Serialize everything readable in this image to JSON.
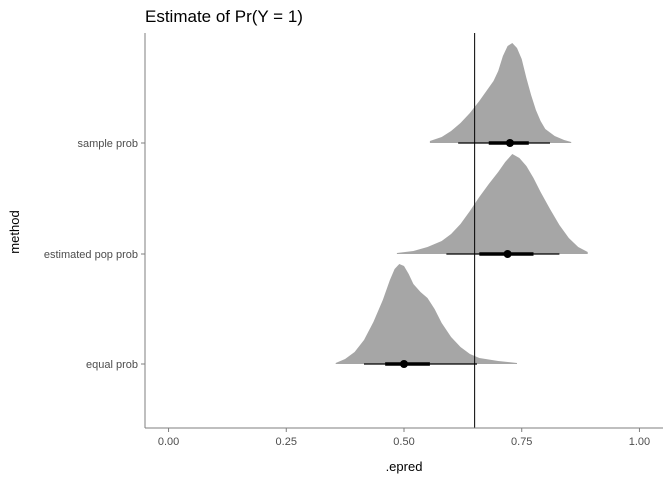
{
  "chart_data": {
    "type": "halfeye",
    "title": "Estimate of Pr(Y = 1)",
    "xlabel": ".epred",
    "ylabel": "method",
    "xlim": [
      -0.05,
      1.05
    ],
    "x_ticks": [
      0.0,
      0.25,
      0.5,
      0.75,
      1.0
    ],
    "x_tick_labels": [
      "0.00",
      "0.25",
      "0.50",
      "0.75",
      "1.00"
    ],
    "reference_line": 0.65,
    "grid": false,
    "density_color": "#a6a6a6",
    "interval_color": "#000000",
    "categories": [
      "sample prob",
      "estimated pop prob",
      "equal prob"
    ],
    "series": [
      {
        "category": "sample prob",
        "point": 0.725,
        "interval_66": [
          0.68,
          0.765
        ],
        "interval_95": [
          0.615,
          0.81
        ],
        "range": [
          0.555,
          0.855
        ],
        "density": [
          [
            0.555,
            0.02
          ],
          [
            0.58,
            0.06
          ],
          [
            0.6,
            0.12
          ],
          [
            0.62,
            0.2
          ],
          [
            0.64,
            0.3
          ],
          [
            0.66,
            0.42
          ],
          [
            0.675,
            0.52
          ],
          [
            0.69,
            0.62
          ],
          [
            0.7,
            0.72
          ],
          [
            0.71,
            0.87
          ],
          [
            0.72,
            0.97
          ],
          [
            0.73,
            1.0
          ],
          [
            0.74,
            0.95
          ],
          [
            0.75,
            0.84
          ],
          [
            0.76,
            0.65
          ],
          [
            0.77,
            0.48
          ],
          [
            0.78,
            0.33
          ],
          [
            0.79,
            0.22
          ],
          [
            0.8,
            0.14
          ],
          [
            0.82,
            0.07
          ],
          [
            0.84,
            0.03
          ],
          [
            0.855,
            0.01
          ]
        ]
      },
      {
        "category": "estimated pop prob",
        "point": 0.72,
        "interval_66": [
          0.66,
          0.775
        ],
        "interval_95": [
          0.59,
          0.83
        ],
        "range": [
          0.485,
          0.89
        ],
        "density": [
          [
            0.485,
            0.01
          ],
          [
            0.52,
            0.03
          ],
          [
            0.55,
            0.07
          ],
          [
            0.58,
            0.13
          ],
          [
            0.6,
            0.2
          ],
          [
            0.62,
            0.3
          ],
          [
            0.64,
            0.43
          ],
          [
            0.66,
            0.57
          ],
          [
            0.68,
            0.7
          ],
          [
            0.7,
            0.82
          ],
          [
            0.715,
            0.92
          ],
          [
            0.73,
            1.0
          ],
          [
            0.745,
            0.96
          ],
          [
            0.76,
            0.88
          ],
          [
            0.775,
            0.76
          ],
          [
            0.79,
            0.62
          ],
          [
            0.81,
            0.45
          ],
          [
            0.83,
            0.29
          ],
          [
            0.85,
            0.16
          ],
          [
            0.87,
            0.07
          ],
          [
            0.89,
            0.02
          ]
        ]
      },
      {
        "category": "equal prob",
        "point": 0.5,
        "interval_66": [
          0.46,
          0.555
        ],
        "interval_95": [
          0.415,
          0.655
        ],
        "range": [
          0.355,
          0.74
        ],
        "density": [
          [
            0.355,
            0.01
          ],
          [
            0.375,
            0.05
          ],
          [
            0.395,
            0.12
          ],
          [
            0.415,
            0.24
          ],
          [
            0.435,
            0.42
          ],
          [
            0.455,
            0.64
          ],
          [
            0.47,
            0.84
          ],
          [
            0.48,
            0.95
          ],
          [
            0.49,
            1.0
          ],
          [
            0.5,
            0.98
          ],
          [
            0.51,
            0.9
          ],
          [
            0.52,
            0.8
          ],
          [
            0.535,
            0.72
          ],
          [
            0.55,
            0.66
          ],
          [
            0.565,
            0.55
          ],
          [
            0.58,
            0.41
          ],
          [
            0.6,
            0.27
          ],
          [
            0.62,
            0.17
          ],
          [
            0.64,
            0.1
          ],
          [
            0.66,
            0.06
          ],
          [
            0.7,
            0.03
          ],
          [
            0.74,
            0.01
          ]
        ]
      }
    ]
  }
}
